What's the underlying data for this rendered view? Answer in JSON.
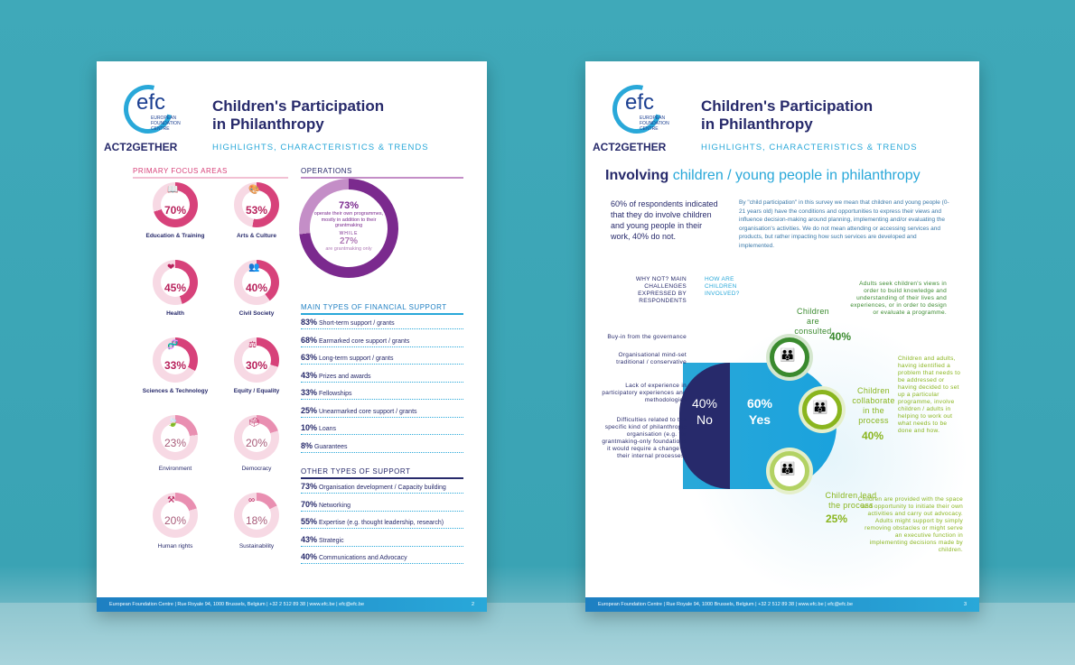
{
  "brand": {
    "logo_text": "efc",
    "logo_sub": "EUROPEAN FOUNDATION CENTRE",
    "act": "ACT2GETHER",
    "title_line1": "Children's Participation",
    "title_line2": "in Philanthropy",
    "highlights": "HIGHLIGHTS, CHARACTERISTICS & TRENDS"
  },
  "colors": {
    "pink": "#d7427a",
    "navy": "#272a6b",
    "blue": "#29a8d9",
    "purple": "#7b2a8e",
    "green": "#3a8a2e",
    "lime": "#8ab51e"
  },
  "page1": {
    "focus_title": "PRIMARY FOCUS AREAS",
    "focus": [
      {
        "pct": "70",
        "unit": "%",
        "label": "Education & Training",
        "icon": "book-icon"
      },
      {
        "pct": "53",
        "unit": "%",
        "label": "Arts & Culture",
        "icon": "palette-icon"
      },
      {
        "pct": "45",
        "unit": "%",
        "label": "Health",
        "icon": "heart-icon"
      },
      {
        "pct": "40",
        "unit": "%",
        "label": "Civil Society",
        "icon": "people-icon"
      },
      {
        "pct": "33",
        "unit": "%",
        "label": "Sciences & Technology",
        "icon": "dna-icon"
      },
      {
        "pct": "30",
        "unit": "%",
        "label": "Equity / Equality",
        "icon": "scales-icon"
      },
      {
        "pct": "23",
        "unit": "%",
        "label": "Environment",
        "icon": "leaf-icon"
      },
      {
        "pct": "20",
        "unit": "%",
        "label": "Democracy",
        "icon": "ballot-icon"
      },
      {
        "pct": "20",
        "unit": "%",
        "label": "Human rights",
        "icon": "gavel-icon"
      },
      {
        "pct": "18",
        "unit": "%",
        "label": "Sustainability",
        "icon": "infinity-icon"
      }
    ],
    "ops_title": "OPERATIONS",
    "ops_a_pct": "73%",
    "ops_a_text": "operate their own programmes, mostly in addition to their grantmaking",
    "ops_while": "WHILE",
    "ops_b_pct": "27%",
    "ops_b_text": "are grantmaking only",
    "fin_title": "MAIN TYPES OF FINANCIAL SUPPORT",
    "fin": [
      {
        "pct": "83%",
        "text": "Short-term support / grants"
      },
      {
        "pct": "68%",
        "text": "Earmarked core support / grants"
      },
      {
        "pct": "63%",
        "text": "Long-term support / grants"
      },
      {
        "pct": "43%",
        "text": "Prizes and awards"
      },
      {
        "pct": "33%",
        "text": "Fellowships"
      },
      {
        "pct": "25%",
        "text": "Unearmarked core support / grants"
      },
      {
        "pct": "10%",
        "text": "Loans"
      },
      {
        "pct": "8%",
        "text": "Guarantees"
      }
    ],
    "other_title": "OTHER TYPES OF SUPPORT",
    "other": [
      {
        "pct": "73%",
        "text": "Organisation development / Capacity building"
      },
      {
        "pct": "70%",
        "text": "Networking"
      },
      {
        "pct": "55%",
        "text": "Expertise (e.g. thought leadership, research)"
      },
      {
        "pct": "43%",
        "text": "Strategic"
      },
      {
        "pct": "40%",
        "text": "Communications and Advocacy"
      }
    ],
    "footer": "European Foundation Centre | Rue Royale 94, 1000 Brussels, Belgium | +32 2 512 89 38 | www.efc.be | efc@efc.be",
    "page_no": "2"
  },
  "page2": {
    "heading_bold": "Involving",
    "heading_rest": "children / young people in philanthropy",
    "lead": "60% of respondents indicated that they do involve children and young people in their work, 40% do not.",
    "definition": "By \"child participation\" in this survey we mean that children and young people (0-21 years old) have the conditions and opportunities to express their views and influence decision-making around planning, implementing and/or evaluating the organisation's activities. We do not mean attending or accessing services and products, but rather impacting how such services are developed and implemented.",
    "why_not": "WHY NOT? MAIN CHALLENGES EXPRESSED BY RESPONDENTS",
    "how_are": "HOW ARE CHILDREN INVOLVED?",
    "challenges": [
      "Buy-in from the governance",
      "Organisational mind-set traditional / conservative",
      "Lack of experience in participatory experiences and methodologies",
      "Difficulties related to the specific kind of philanthropic organisation (e.g. for grantmaking-only foundations it would require a change in their internal processes)"
    ],
    "no_pct": "40%",
    "no_label": "No",
    "yes_pct": "60%",
    "yes_label": "Yes",
    "consulted_label": "Children are consulted",
    "consulted_pct": "40%",
    "consulted_desc": "Adults seek children's views in order to build knowledge and understanding of their lives and experiences, or in order to design or evaluate a programme.",
    "collab_label": "Children collaborate in the process",
    "collab_pct": "40%",
    "collab_desc": "Children and adults, having identified a problem that needs to be addressed or having decided to set up a particular programme, involve children / adults in helping to work out what needs to be done and how.",
    "lead_label": "Children lead the process",
    "lead_pct": "25%",
    "lead_desc": "Children are provided with the space and opportunity to initiate their own activities and carry out advocacy. Adults might support by simply removing obstacles or might serve an executive function in implementing decisions made by children.",
    "footer": "European Foundation Centre | Rue Royale 94, 1000 Brussels, Belgium | +32 2 512 89 38 | www.efc.be | efc@efc.be",
    "page_no": "3"
  }
}
